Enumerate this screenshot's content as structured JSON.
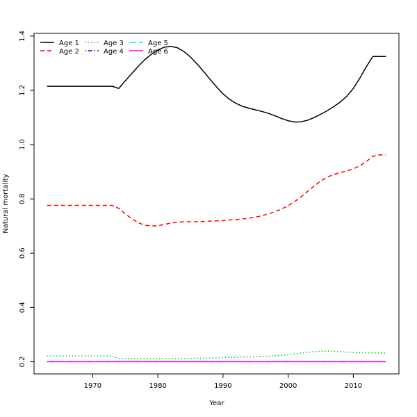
{
  "chart_data": {
    "type": "line",
    "title": "",
    "xlabel": "Year",
    "ylabel": "Natural mortality",
    "xlim": [
      1961,
      2017
    ],
    "ylim": [
      0.155,
      1.41
    ],
    "x_ticks": [
      1970,
      1980,
      1990,
      2000,
      2010
    ],
    "y_ticks": [
      0.2,
      0.4,
      0.6,
      0.8,
      1.0,
      1.2,
      1.4
    ],
    "y_tick_labels": [
      "0.2",
      "0.4",
      "0.6",
      "0.8",
      "1.0",
      "1.2",
      "1.4"
    ],
    "grid": false,
    "legend_position": "top-left",
    "x": [
      1963,
      1964,
      1965,
      1966,
      1967,
      1968,
      1969,
      1970,
      1971,
      1972,
      1973,
      1974,
      1975,
      1976,
      1977,
      1978,
      1979,
      1980,
      1981,
      1982,
      1983,
      1984,
      1985,
      1986,
      1987,
      1988,
      1989,
      1990,
      1991,
      1992,
      1993,
      1994,
      1995,
      1996,
      1997,
      1998,
      1999,
      2000,
      2001,
      2002,
      2003,
      2004,
      2005,
      2006,
      2007,
      2008,
      2009,
      2010,
      2011,
      2012,
      2013,
      2014,
      2015
    ],
    "series": [
      {
        "name": "Age 1",
        "color": "#000000",
        "dash": "solid",
        "values": [
          1.215,
          1.215,
          1.215,
          1.215,
          1.215,
          1.215,
          1.215,
          1.215,
          1.215,
          1.215,
          1.215,
          1.207,
          1.235,
          1.262,
          1.289,
          1.313,
          1.333,
          1.349,
          1.359,
          1.362,
          1.357,
          1.343,
          1.323,
          1.298,
          1.27,
          1.241,
          1.213,
          1.187,
          1.167,
          1.152,
          1.141,
          1.134,
          1.128,
          1.122,
          1.115,
          1.106,
          1.096,
          1.088,
          1.083,
          1.084,
          1.09,
          1.1,
          1.112,
          1.125,
          1.14,
          1.157,
          1.178,
          1.207,
          1.245,
          1.287,
          1.325,
          1.325,
          1.325
        ]
      },
      {
        "name": "Age 2",
        "color": "#ff0000",
        "dash": "dashed",
        "values": [
          0.776,
          0.776,
          0.776,
          0.776,
          0.776,
          0.776,
          0.776,
          0.776,
          0.776,
          0.776,
          0.776,
          0.765,
          0.745,
          0.727,
          0.712,
          0.703,
          0.7,
          0.701,
          0.706,
          0.711,
          0.714,
          0.716,
          0.716,
          0.716,
          0.717,
          0.718,
          0.719,
          0.72,
          0.722,
          0.724,
          0.726,
          0.729,
          0.733,
          0.738,
          0.745,
          0.753,
          0.763,
          0.775,
          0.79,
          0.808,
          0.828,
          0.848,
          0.866,
          0.88,
          0.89,
          0.897,
          0.903,
          0.911,
          0.922,
          0.938,
          0.957,
          0.962,
          0.962
        ]
      },
      {
        "name": "Age 3",
        "color": "#00cd00",
        "dash": "dotted",
        "values": [
          0.221,
          0.221,
          0.221,
          0.221,
          0.221,
          0.221,
          0.221,
          0.221,
          0.221,
          0.221,
          0.221,
          0.212,
          0.211,
          0.211,
          0.211,
          0.211,
          0.211,
          0.211,
          0.211,
          0.211,
          0.211,
          0.211,
          0.212,
          0.213,
          0.213,
          0.214,
          0.214,
          0.215,
          0.216,
          0.216,
          0.217,
          0.217,
          0.218,
          0.219,
          0.22,
          0.222,
          0.224,
          0.226,
          0.229,
          0.232,
          0.235,
          0.237,
          0.239,
          0.239,
          0.238,
          0.237,
          0.235,
          0.234,
          0.233,
          0.233,
          0.232,
          0.232,
          0.232
        ]
      },
      {
        "name": "Age 4",
        "color": "#0000ff",
        "dash": "dotdash",
        "values": [
          0.2,
          0.2,
          0.2,
          0.2,
          0.2,
          0.2,
          0.2,
          0.2,
          0.2,
          0.2,
          0.2,
          0.2,
          0.2,
          0.2,
          0.2,
          0.2,
          0.2,
          0.2,
          0.2,
          0.2,
          0.2,
          0.2,
          0.2,
          0.2,
          0.2,
          0.2,
          0.2,
          0.2,
          0.2,
          0.2,
          0.2,
          0.2,
          0.2,
          0.2,
          0.2,
          0.2,
          0.2,
          0.2,
          0.2,
          0.2,
          0.2,
          0.2,
          0.2,
          0.2,
          0.2,
          0.2,
          0.2,
          0.2,
          0.2,
          0.2,
          0.2,
          0.2,
          0.2
        ]
      },
      {
        "name": "Age 5",
        "color": "#00eeee",
        "dash": "longdash",
        "values": [
          0.2,
          0.2,
          0.2,
          0.2,
          0.2,
          0.2,
          0.2,
          0.2,
          0.2,
          0.2,
          0.2,
          0.2,
          0.2,
          0.2,
          0.2,
          0.2,
          0.2,
          0.2,
          0.2,
          0.2,
          0.2,
          0.2,
          0.2,
          0.2,
          0.2,
          0.2,
          0.2,
          0.2,
          0.2,
          0.2,
          0.2,
          0.2,
          0.2,
          0.2,
          0.2,
          0.2,
          0.2,
          0.2,
          0.2,
          0.2,
          0.2,
          0.2,
          0.2,
          0.2,
          0.2,
          0.2,
          0.2,
          0.2,
          0.2,
          0.2,
          0.2,
          0.2,
          0.2
        ]
      },
      {
        "name": "Age 6",
        "color": "#ff00ff",
        "dash": "solid",
        "values": [
          0.2,
          0.2,
          0.2,
          0.2,
          0.2,
          0.2,
          0.2,
          0.2,
          0.2,
          0.2,
          0.2,
          0.2,
          0.2,
          0.2,
          0.2,
          0.2,
          0.2,
          0.2,
          0.2,
          0.2,
          0.2,
          0.2,
          0.2,
          0.2,
          0.2,
          0.2,
          0.2,
          0.2,
          0.2,
          0.2,
          0.2,
          0.2,
          0.2,
          0.2,
          0.2,
          0.2,
          0.2,
          0.2,
          0.2,
          0.2,
          0.2,
          0.2,
          0.2,
          0.2,
          0.2,
          0.2,
          0.2,
          0.2,
          0.2,
          0.2,
          0.2,
          0.2,
          0.2
        ]
      }
    ]
  }
}
